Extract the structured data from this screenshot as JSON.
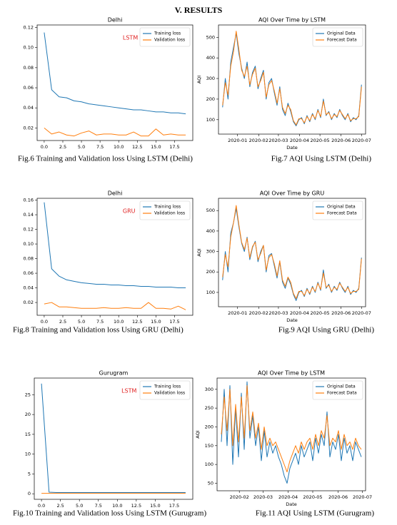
{
  "heading": "V. RESULTS",
  "captions": [
    "Fig.6 Training and Validation loss Using LSTM (Delhi)",
    "Fig.7 AQI Using LSTM (Delhi)",
    "Fig.8 Training and Validation loss Using GRU (Delhi)",
    "Fig.9 AQI Using GRU (Delhi)",
    "Fig.10 Training and Validation loss Using LSTM (Gurugram)",
    "Fig.11 AQI Using LSTM (Gurugram)"
  ],
  "chart_data": [
    {
      "type": "line",
      "title": "Delhi",
      "annotation": "LSTM",
      "legend": "upper right",
      "series": [
        {
          "name": "Training loss",
          "color": "#1f77b4",
          "values": [
            0.115,
            0.058,
            0.051,
            0.05,
            0.047,
            0.046,
            0.044,
            0.043,
            0.042,
            0.041,
            0.04,
            0.039,
            0.038,
            0.038,
            0.037,
            0.036,
            0.036,
            0.035,
            0.035,
            0.034
          ]
        },
        {
          "name": "Validation loss",
          "color": "#ff7f0e",
          "values": [
            0.02,
            0.014,
            0.016,
            0.013,
            0.012,
            0.015,
            0.017,
            0.013,
            0.014,
            0.014,
            0.013,
            0.013,
            0.016,
            0.012,
            0.012,
            0.019,
            0.013,
            0.014,
            0.013,
            0.013
          ]
        }
      ],
      "xlim": [
        -0.95,
        19.95
      ],
      "ylim": [
        0.0075,
        0.1225
      ],
      "xticks": [
        {
          "value": 0,
          "label": "0.0"
        },
        2.5,
        {
          "value": 5,
          "label": "5.0"
        },
        7.5,
        {
          "value": 10,
          "label": "10.0"
        },
        12.5,
        {
          "value": 15,
          "label": "15.0"
        },
        17.5
      ],
      "yticks": [
        0.02,
        0.04,
        0.06,
        0.08,
        {
          "value": 0.1,
          "label": "0.10"
        },
        0.12
      ]
    },
    {
      "type": "line",
      "title": "AQI Over Time by LSTM",
      "xlabel": "Date",
      "ylabel": "AQI",
      "legend": "upper right",
      "series": [
        {
          "name": "Original Data",
          "color": "#1f77b4",
          "values": [
            160,
            300,
            200,
            380,
            450,
            520,
            420,
            350,
            300,
            380,
            260,
            330,
            360,
            250,
            300,
            340,
            200,
            280,
            300,
            230,
            170,
            260,
            150,
            120,
            180,
            140,
            90,
            70,
            100,
            110,
            80,
            120,
            90,
            130,
            100,
            150,
            110,
            200,
            120,
            140,
            100,
            130,
            110,
            150,
            120,
            100,
            130,
            90,
            110,
            100,
            120,
            270
          ]
        },
        {
          "name": "Forecast Data",
          "color": "#ff7f0e",
          "values": [
            170,
            280,
            220,
            360,
            430,
            530,
            440,
            340,
            310,
            360,
            270,
            320,
            350,
            260,
            290,
            330,
            210,
            270,
            290,
            240,
            180,
            250,
            160,
            130,
            170,
            150,
            95,
            75,
            105,
            105,
            85,
            115,
            95,
            125,
            105,
            145,
            115,
            190,
            125,
            135,
            105,
            125,
            115,
            145,
            125,
            105,
            125,
            95,
            105,
            105,
            115,
            260
          ]
        }
      ],
      "xlim": [
        -1.5,
        52.5
      ],
      "ylim": [
        30,
        560
      ],
      "xticks": [
        {
          "value": 5.5,
          "label": "2020-01"
        },
        {
          "value": 13.25,
          "label": "2020-02"
        },
        {
          "value": 20.5,
          "label": "2020-03"
        },
        {
          "value": 28.25,
          "label": "2020-04"
        },
        {
          "value": 35.75,
          "label": "2020-05"
        },
        {
          "value": 43.5,
          "label": "2020-06"
        },
        {
          "value": 51,
          "label": "2020-07"
        }
      ],
      "yticks": [
        100,
        200,
        300,
        400,
        500
      ]
    },
    {
      "type": "line",
      "title": "Delhi",
      "annotation": "GRU",
      "legend": "upper right",
      "series": [
        {
          "name": "Training loss",
          "color": "#1f77b4",
          "values": [
            0.157,
            0.066,
            0.056,
            0.051,
            0.049,
            0.047,
            0.046,
            0.045,
            0.045,
            0.044,
            0.044,
            0.043,
            0.043,
            0.042,
            0.042,
            0.041,
            0.041,
            0.041,
            0.04,
            0.04
          ]
        },
        {
          "name": "Validation loss",
          "color": "#ff7f0e",
          "values": [
            0.018,
            0.02,
            0.014,
            0.014,
            0.013,
            0.012,
            0.012,
            0.012,
            0.013,
            0.012,
            0.012,
            0.013,
            0.012,
            0.012,
            0.02,
            0.012,
            0.012,
            0.011,
            0.015,
            0.01
          ]
        }
      ],
      "xlim": [
        -0.95,
        19.95
      ],
      "ylim": [
        0.0025,
        0.1625
      ],
      "xticks": [
        {
          "value": 0,
          "label": "0.0"
        },
        2.5,
        {
          "value": 5,
          "label": "5.0"
        },
        7.5,
        {
          "value": 10,
          "label": "10.0"
        },
        12.5,
        {
          "value": 15,
          "label": "15.0"
        },
        17.5
      ],
      "yticks": [
        0.02,
        0.04,
        0.06,
        0.08,
        {
          "value": 0.1,
          "label": "0.10"
        },
        0.12,
        0.14,
        0.16
      ]
    },
    {
      "type": "line",
      "title": "AQI Over Time by GRU",
      "xlabel": "Date",
      "ylabel": "AQI",
      "legend": "upper right",
      "series": [
        {
          "name": "Original Data",
          "color": "#1f77b4",
          "values": [
            160,
            300,
            200,
            390,
            440,
            510,
            420,
            340,
            300,
            370,
            260,
            320,
            350,
            250,
            300,
            330,
            200,
            280,
            290,
            230,
            170,
            250,
            150,
            120,
            170,
            140,
            90,
            60,
            100,
            110,
            80,
            120,
            90,
            130,
            100,
            150,
            110,
            210,
            120,
            140,
            100,
            130,
            110,
            150,
            120,
            100,
            130,
            90,
            110,
            100,
            120,
            270
          ]
        },
        {
          "name": "Forecast Data",
          "color": "#ff7f0e",
          "values": [
            175,
            285,
            225,
            370,
            440,
            525,
            430,
            345,
            310,
            365,
            270,
            325,
            345,
            260,
            290,
            330,
            210,
            270,
            285,
            240,
            180,
            255,
            160,
            130,
            175,
            150,
            95,
            70,
            105,
            105,
            85,
            115,
            95,
            125,
            105,
            145,
            115,
            195,
            125,
            135,
            105,
            125,
            115,
            145,
            125,
            105,
            125,
            95,
            105,
            105,
            115,
            265
          ]
        }
      ],
      "xlim": [
        -1.5,
        52.5
      ],
      "ylim": [
        30,
        560
      ],
      "xticks": [
        {
          "value": 5.5,
          "label": "2020-01"
        },
        {
          "value": 13.25,
          "label": "2020-02"
        },
        {
          "value": 20.5,
          "label": "2020-03"
        },
        {
          "value": 28.25,
          "label": "2020-04"
        },
        {
          "value": 35.75,
          "label": "2020-05"
        },
        {
          "value": 43.5,
          "label": "2020-06"
        },
        {
          "value": 51,
          "label": "2020-07"
        }
      ],
      "yticks": [
        100,
        200,
        300,
        400,
        500
      ]
    },
    {
      "type": "line",
      "title": "Gurugram",
      "annotation": "LSTM",
      "legend": "upper right",
      "series": [
        {
          "name": "Training loss",
          "color": "#1f77b4",
          "values": [
            27.8,
            0.4,
            0.3,
            0.3,
            0.3,
            0.3,
            0.3,
            0.3,
            0.3,
            0.3,
            0.3,
            0.3,
            0.3,
            0.3,
            0.3,
            0.3,
            0.3,
            0.3,
            0.3,
            0.3
          ]
        },
        {
          "name": "Validation loss",
          "color": "#ff7f0e",
          "values": [
            0.1,
            0.1,
            0.1,
            0.1,
            0.1,
            0.1,
            0.1,
            0.1,
            0.1,
            0.1,
            0.1,
            0.1,
            0.1,
            0.1,
            0.1,
            0.1,
            0.1,
            0.1,
            0.1,
            0.1
          ]
        }
      ],
      "xlim": [
        -0.95,
        19.95
      ],
      "ylim": [
        -1.4,
        29.2
      ],
      "xticks": [
        {
          "value": 0,
          "label": "0.0"
        },
        2.5,
        {
          "value": 5,
          "label": "5.0"
        },
        7.5,
        {
          "value": 10,
          "label": "10.0"
        },
        12.5,
        {
          "value": 15,
          "label": "15.0"
        },
        17.5
      ],
      "yticks": [
        0,
        5,
        10,
        15,
        20,
        25
      ]
    },
    {
      "type": "line",
      "title": "AQI Over Time by LSTM",
      "xlabel": "Date",
      "ylabel": "AQI",
      "legend": "upper right",
      "series": [
        {
          "name": "Original Data",
          "color": "#1f77b4",
          "values": [
            160,
            300,
            150,
            310,
            100,
            250,
            120,
            290,
            140,
            320,
            170,
            230,
            150,
            200,
            110,
            190,
            120,
            160,
            130,
            150,
            120,
            100,
            70,
            50,
            90,
            110,
            130,
            100,
            150,
            120,
            140,
            160,
            110,
            170,
            130,
            180,
            150,
            240,
            120,
            160,
            140,
            180,
            110,
            170,
            130,
            150,
            110,
            160,
            140,
            120
          ]
        },
        {
          "name": "Forecast Data",
          "color": "#ff7f0e",
          "values": [
            180,
            280,
            190,
            300,
            150,
            260,
            160,
            280,
            170,
            310,
            190,
            240,
            170,
            210,
            140,
            200,
            150,
            170,
            150,
            160,
            140,
            120,
            100,
            80,
            110,
            130,
            150,
            130,
            160,
            140,
            160,
            170,
            140,
            180,
            150,
            190,
            170,
            230,
            150,
            170,
            160,
            190,
            140,
            180,
            150,
            160,
            140,
            170,
            150,
            140
          ]
        }
      ],
      "xlim": [
        -1.5,
        50.5
      ],
      "ylim": [
        30,
        330
      ],
      "xticks": [
        {
          "value": 6.3,
          "label": "2020-02"
        },
        {
          "value": 14.6,
          "label": "2020-03"
        },
        {
          "value": 23.4,
          "label": "2020-04"
        },
        {
          "value": 32,
          "label": "2020-05"
        },
        {
          "value": 40.9,
          "label": "2020-06"
        },
        {
          "value": 49.4,
          "label": "2020-07"
        }
      ],
      "yticks": [
        50,
        100,
        150,
        200,
        250,
        300
      ]
    }
  ]
}
